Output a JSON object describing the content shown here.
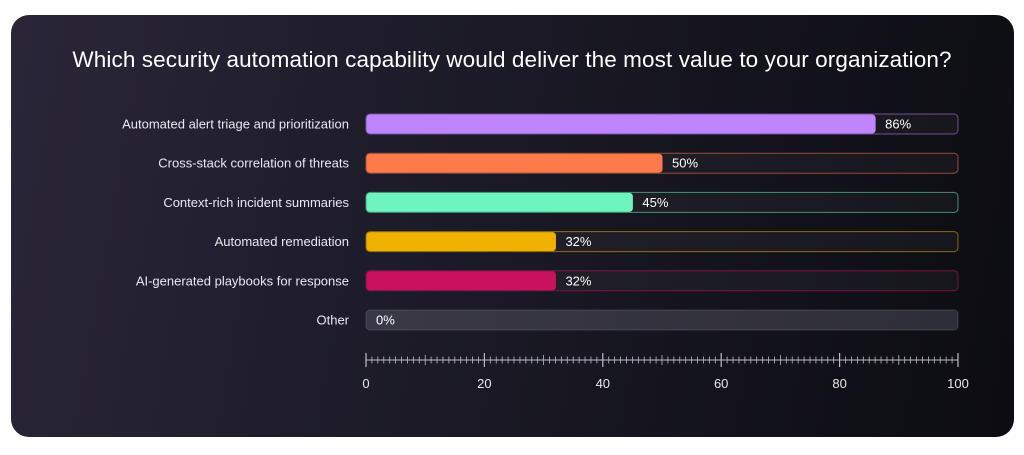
{
  "chart_data": {
    "type": "bar",
    "orientation": "horizontal",
    "title": "Which security automation capability would deliver the most value to your organization?",
    "categories": [
      "Automated alert triage and prioritization",
      "Cross-stack correlation of threats",
      "Context-rich incident summaries",
      "Automated remediation",
      "AI-generated playbooks for response",
      "Other"
    ],
    "values": [
      86,
      50,
      45,
      32,
      32,
      0
    ],
    "value_labels": [
      "86%",
      "50%",
      "45%",
      "32%",
      "32%",
      "0%"
    ],
    "colors": [
      "#c084fc",
      "#ff7a4a",
      "#6ef5bd",
      "#f0b100",
      "#c8125f",
      "#5a5868"
    ],
    "xlim": [
      0,
      100
    ],
    "xticks": [
      0,
      20,
      40,
      60,
      80,
      100
    ],
    "xtick_labels": [
      "0",
      "20",
      "40",
      "60",
      "80",
      "100"
    ],
    "grid": false,
    "legend": "none"
  }
}
